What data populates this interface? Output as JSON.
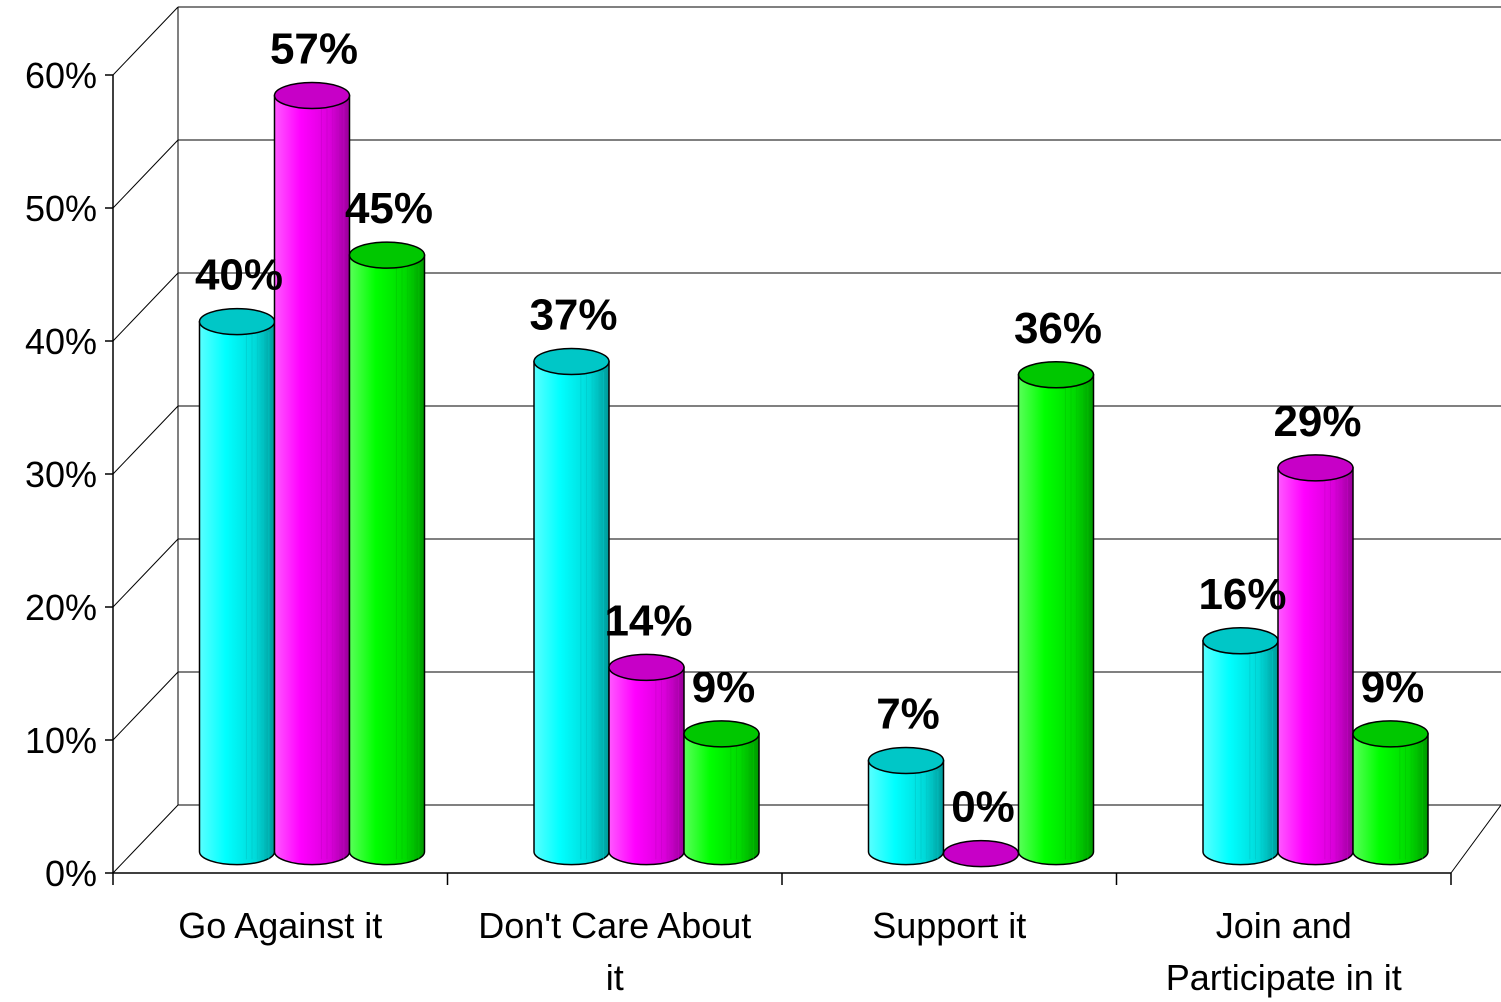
{
  "chart_data": {
    "type": "bar",
    "style": "3d-cylinder",
    "categories": [
      {
        "id": "cat-0",
        "lines": [
          "Go Against it"
        ]
      },
      {
        "id": "cat-1",
        "lines": [
          "Don't Care About",
          "it"
        ]
      },
      {
        "id": "cat-2",
        "lines": [
          "Support it"
        ]
      },
      {
        "id": "cat-3",
        "lines": [
          "Join and",
          "Participate in it"
        ]
      }
    ],
    "series": [
      {
        "color": "#00ffff",
        "values": [
          40,
          37,
          7,
          16
        ],
        "labels": [
          "40%",
          "37%",
          "7%",
          "16%"
        ]
      },
      {
        "color": "#ff00ff",
        "values": [
          57,
          14,
          0,
          29
        ],
        "labels": [
          "57%",
          "14%",
          "0%",
          "29%"
        ]
      },
      {
        "color": "#00ff00",
        "values": [
          45,
          9,
          36,
          9
        ],
        "labels": [
          "45%",
          "9%",
          "36%",
          "9%"
        ]
      }
    ],
    "yticks": [
      "0%",
      "10%",
      "20%",
      "30%",
      "40%",
      "50%",
      "60%"
    ],
    "ylim": [
      0,
      60
    ],
    "grid": true,
    "legend": "none"
  }
}
